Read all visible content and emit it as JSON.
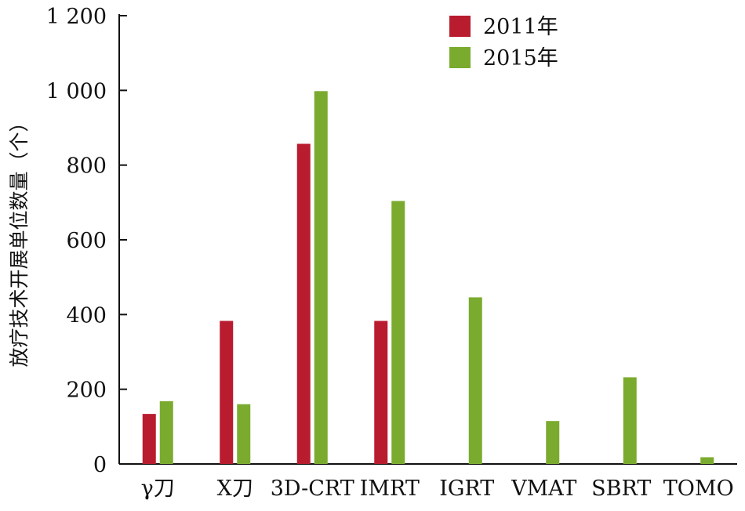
{
  "chart_data": {
    "type": "bar",
    "ylabel": "放疗技术开展单位数量（个）",
    "ylim": [
      0,
      1200
    ],
    "yticks": [
      0,
      200,
      400,
      600,
      800,
      1000,
      1200
    ],
    "ytick_labels": [
      "0",
      "200",
      "400",
      "600",
      "800",
      "1 000",
      "1 200"
    ],
    "categories": [
      "γ刀",
      "X刀",
      "3D-CRT",
      "IMRT",
      "IGRT",
      "VMAT",
      "SBRT",
      "TOMO"
    ],
    "series": [
      {
        "name": "2011年",
        "color": "#b81c2e",
        "values": [
          134,
          383,
          857,
          383,
          null,
          null,
          null,
          null
        ]
      },
      {
        "name": "2015年",
        "color": "#7aab2f",
        "values": [
          168,
          160,
          998,
          704,
          446,
          115,
          232,
          18
        ]
      }
    ],
    "legend_position": "top-center",
    "grid": false
  }
}
